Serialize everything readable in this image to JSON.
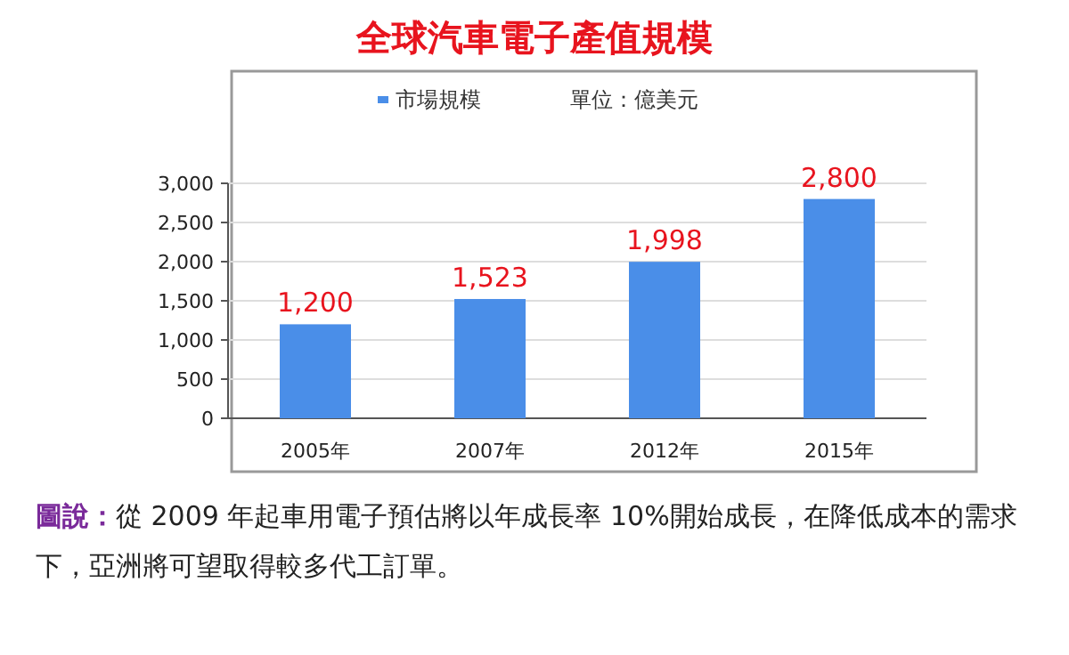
{
  "chart_data": {
    "type": "bar",
    "title": "全球汽車電子產值規模",
    "ylabel": "單位：億美元",
    "categories": [
      "2005年",
      "2007年",
      "2012年",
      "2015年"
    ],
    "series": [
      {
        "name": "市場規模",
        "color": "#4a8ee8",
        "values": [
          1200,
          1523,
          1998,
          2800
        ],
        "value_labels": [
          "1,200",
          "1,523",
          "1,998",
          "2,800"
        ]
      }
    ],
    "ylim": [
      0,
      3000
    ],
    "yticks": [
      0,
      500,
      {
        "value": 1000,
        "label": "1,000"
      },
      {
        "value": 1500,
        "label": "1,500"
      },
      {
        "value": 2000,
        "label": "2,000"
      },
      {
        "value": 2500,
        "label": "2,500"
      },
      {
        "value": 3000,
        "label": "3,000"
      }
    ],
    "legend": "top",
    "grid": "y",
    "annotations": [
      "圖說：",
      "從 2009 年起車用電子預估將以年成長率 10%開始成長，在降低成本的需求下，亞洲將可望取得較多代工訂單。"
    ]
  }
}
